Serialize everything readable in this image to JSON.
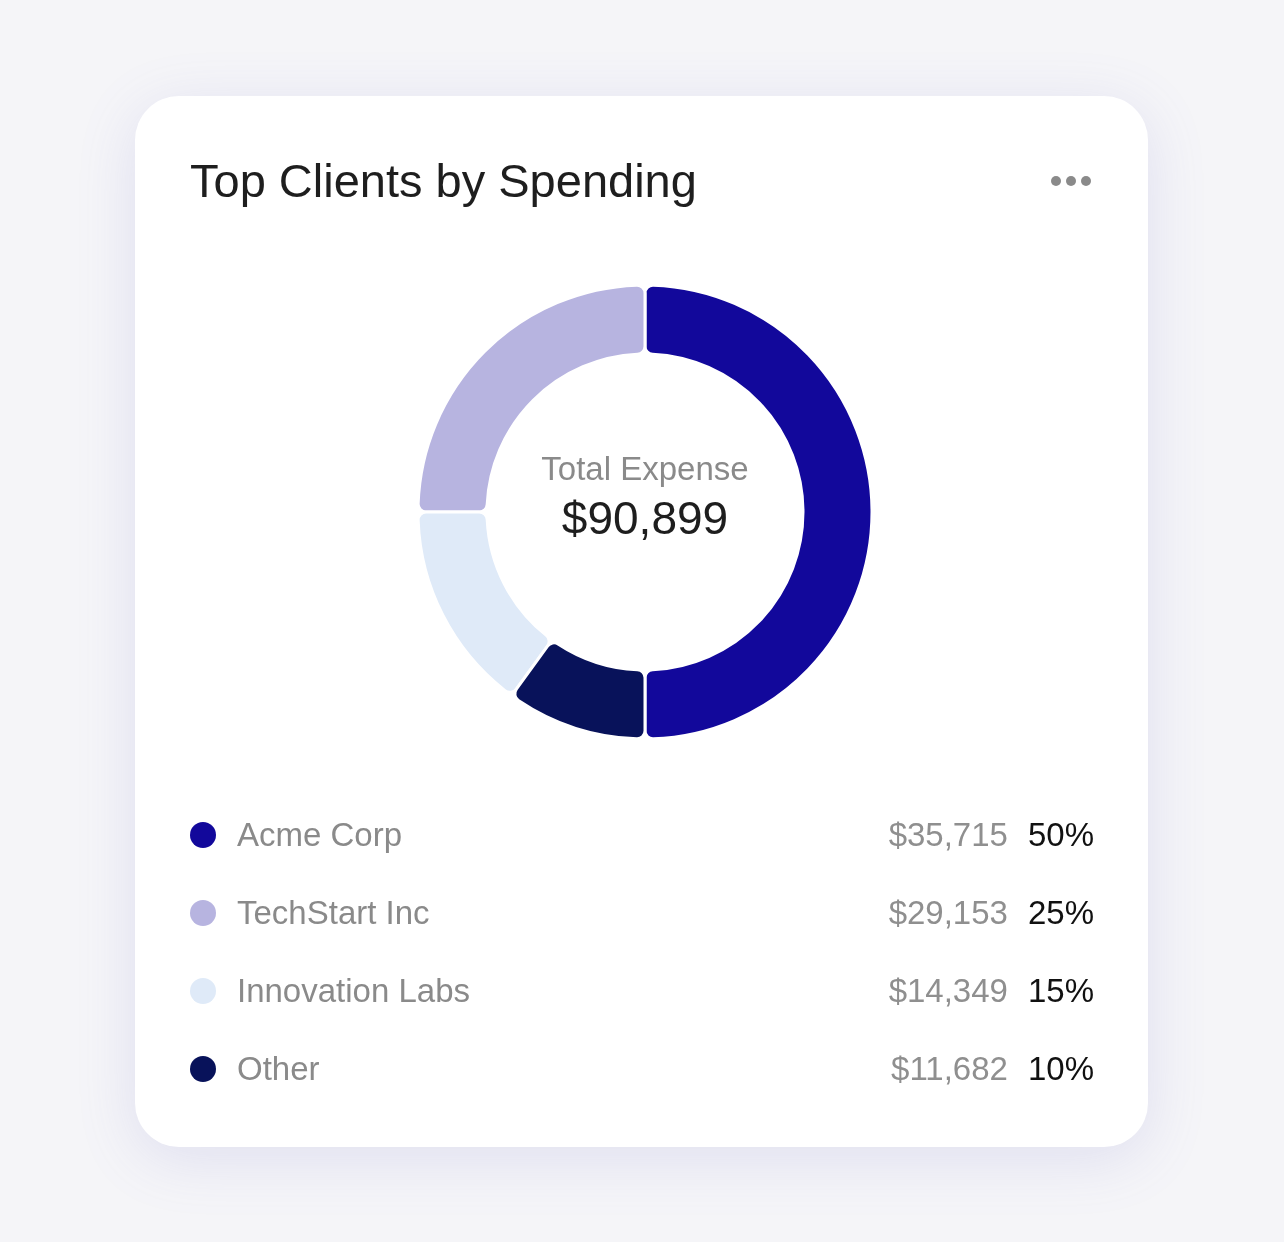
{
  "chart_data": {
    "type": "donut",
    "title": "Top Clients by Spending",
    "categories": [
      "Acme Corp",
      "TechStart Inc",
      "Innovation Labs",
      "Other"
    ],
    "values": [
      50,
      25,
      15,
      10
    ],
    "colors": [
      "#12089b",
      "#b7b4e0",
      "#dfeaf8",
      "#08125a"
    ],
    "value_labels": [
      "50%",
      "25%",
      "15%",
      "10%"
    ],
    "annotations": [
      "Total Expense",
      "$90,899",
      {
        "text": "$35,715",
        "x": "Acme Corp"
      },
      {
        "text": "$29,153",
        "x": "TechStart Inc"
      },
      {
        "text": "$14,349",
        "x": "Innovation Labs"
      },
      {
        "text": "$11,682",
        "x": "Other"
      }
    ],
    "legend": "bottom"
  }
}
